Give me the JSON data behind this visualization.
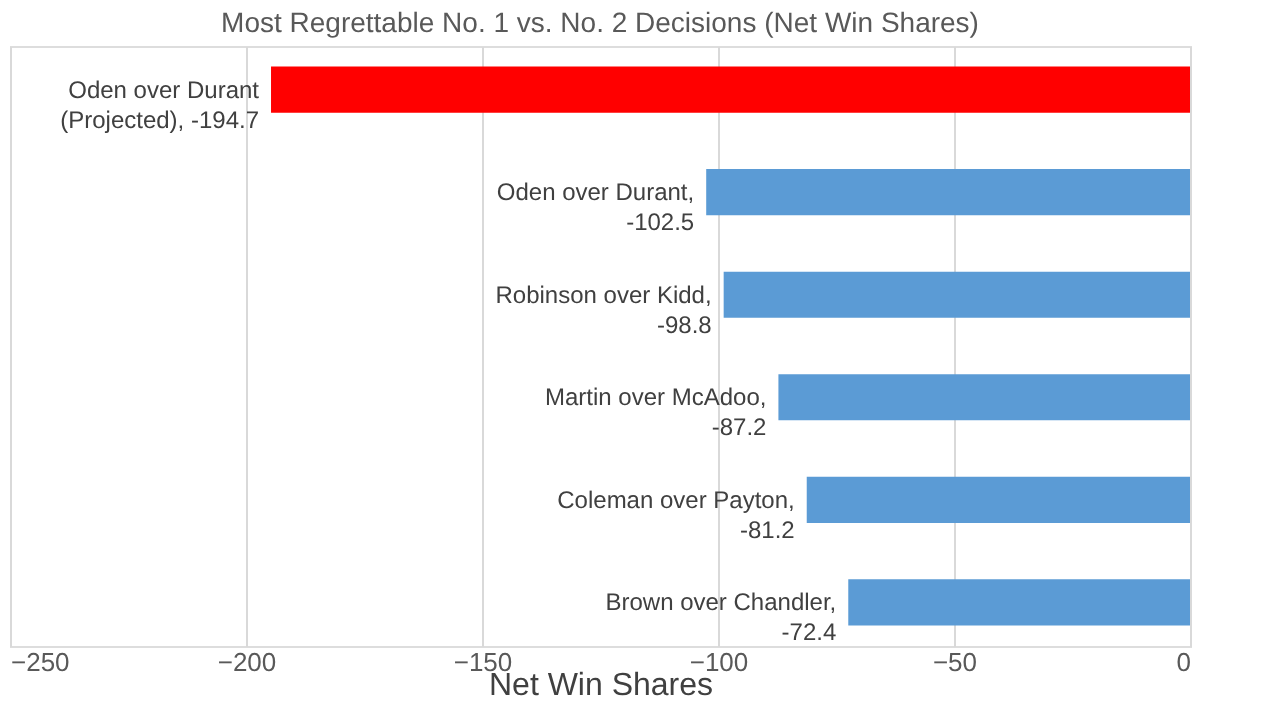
{
  "chart_data": {
    "type": "bar",
    "orientation": "horizontal",
    "title": "Most Regrettable No. 1 vs. No. 2 Decisions (Net Win Shares)",
    "xlabel": "Net Win Shares",
    "categories": [
      null,
      null,
      null,
      null,
      null,
      null
    ],
    "values": [
      -194.7,
      -102.5,
      -98.8,
      -87.2,
      -81.2,
      -72.4
    ],
    "colors": [
      "#ff0000",
      "#5b9bd5",
      "#5b9bd5",
      "#5b9bd5",
      "#5b9bd5",
      "#5b9bd5"
    ],
    "value_labels": [
      "Oden over Durant (Projected), -194.7",
      "Oden over Durant, -102.5",
      "Robinson over Kidd, -98.8",
      "Martin over McAdoo, -87.2",
      "Coleman over Payton, -81.2",
      "Brown over Chandler, -72.4"
    ],
    "xlim": [
      -250,
      0
    ],
    "xticks": [
      -250,
      -200,
      -150,
      -100,
      -50,
      0
    ],
    "grid": "x"
  }
}
